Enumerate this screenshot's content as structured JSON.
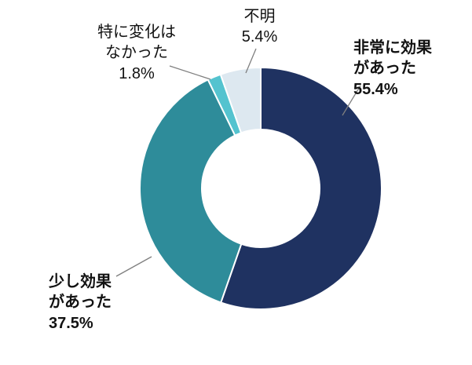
{
  "chart_data": {
    "type": "pie",
    "subtype": "donut",
    "title": "",
    "categories": [
      "非常に効果があった",
      "少し効果があった",
      "特に変化はなかった",
      "不明"
    ],
    "values": [
      55.4,
      37.5,
      1.8,
      5.4
    ],
    "unit": "%",
    "colors": [
      "#1f3261",
      "#2e8c9a",
      "#54c3cf",
      "#dde8f0"
    ],
    "slice_names": [
      "very-effective",
      "somewhat-effective",
      "no-change",
      "unknown"
    ],
    "start_angle_deg": 0,
    "direction": "clockwise",
    "legend_position": "none",
    "background": "#ffffff",
    "leader_line_color": "#7f7f7f",
    "data_labels": [
      "非常に効果があった 55.4%",
      "少し効果があった 37.5%",
      "特に変化はなかった 1.8%",
      "不明 5.4%"
    ]
  },
  "labels": {
    "very_effective": {
      "text": "非常に効果\nがあった\n55.4%"
    },
    "somewhat_effective": {
      "text": "少し効果\nがあった\n37.5%"
    },
    "no_change": {
      "text": "特に変化は\nなかった\n1.8%"
    },
    "unknown": {
      "text": "不明\n5.4%"
    }
  }
}
